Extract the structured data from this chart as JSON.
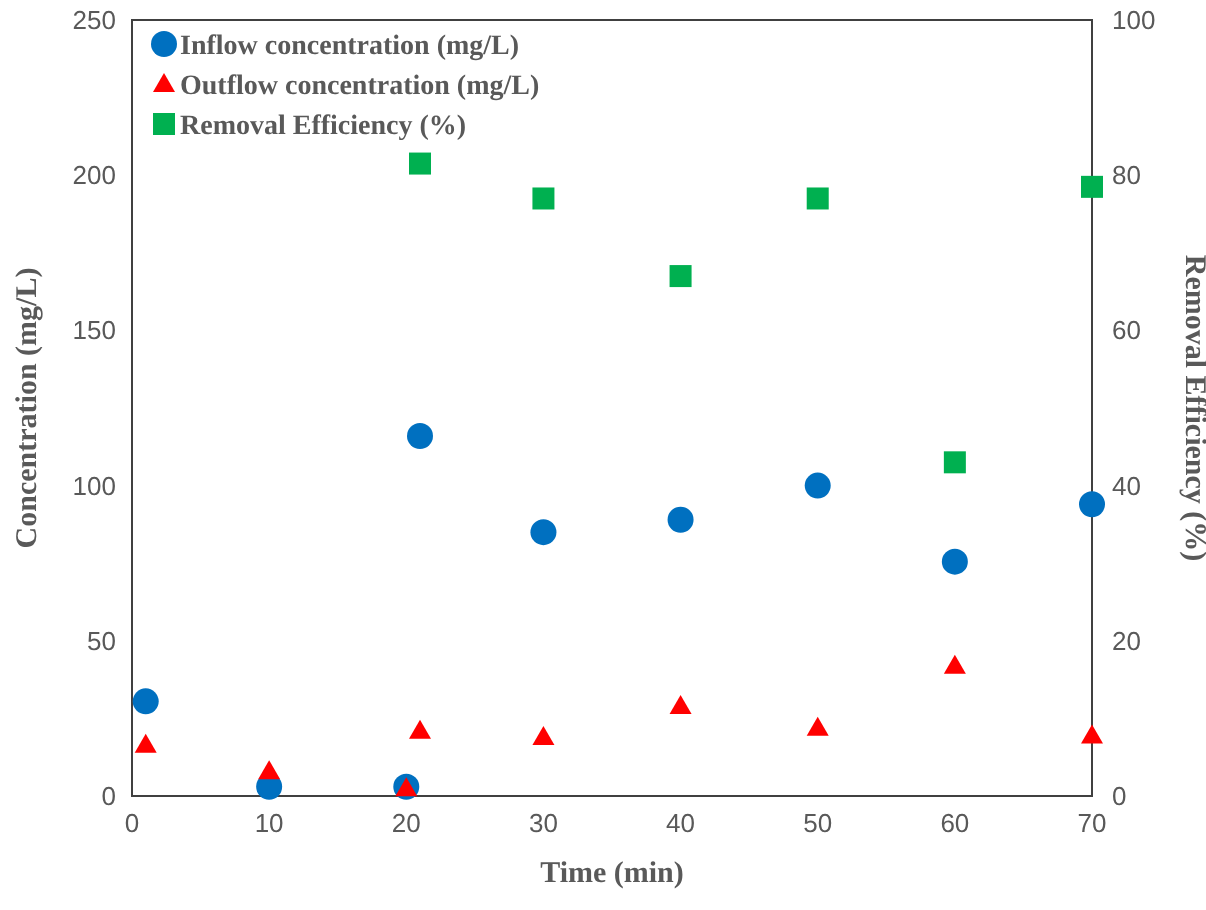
{
  "chart_data": {
    "type": "scatter",
    "xlabel": "Time (min)",
    "ylabel": "Concentration (mg/L)",
    "y2label": "Removal Efficiency (%)",
    "xlim": [
      0,
      70
    ],
    "xticks": [
      0,
      10,
      20,
      30,
      40,
      50,
      60,
      70
    ],
    "ylim": [
      0,
      250
    ],
    "yticks": [
      0,
      50,
      100,
      150,
      200,
      250
    ],
    "y2lim": [
      0,
      100
    ],
    "y2ticks": [
      0,
      20,
      40,
      60,
      80,
      100
    ],
    "grid": false,
    "legend": "top left",
    "series": [
      {
        "name": "Inflow concentration (mg/L)",
        "color": "#0070c0",
        "marker": "circle",
        "x": [
          1,
          10,
          20,
          21,
          30,
          40,
          50,
          60,
          70
        ],
        "values": [
          30.5,
          3,
          3,
          116,
          85,
          89,
          100,
          75.5,
          94
        ]
      },
      {
        "name": "Outflow concentration (mg/L)",
        "color": "#ff0000",
        "marker": "triangle",
        "x": [
          1,
          10,
          20,
          21,
          30,
          40,
          50,
          60,
          70
        ],
        "values": [
          16.5,
          8,
          2.5,
          21,
          19,
          29,
          22,
          42,
          19.5
        ]
      },
      {
        "name": "Removal Efficiency (%)",
        "color": "#00b050",
        "marker": "square",
        "axis": "y2",
        "x": [
          21,
          30,
          40,
          50,
          60,
          70
        ],
        "values": [
          81.5,
          77,
          67,
          77,
          43,
          78.5
        ]
      }
    ]
  }
}
